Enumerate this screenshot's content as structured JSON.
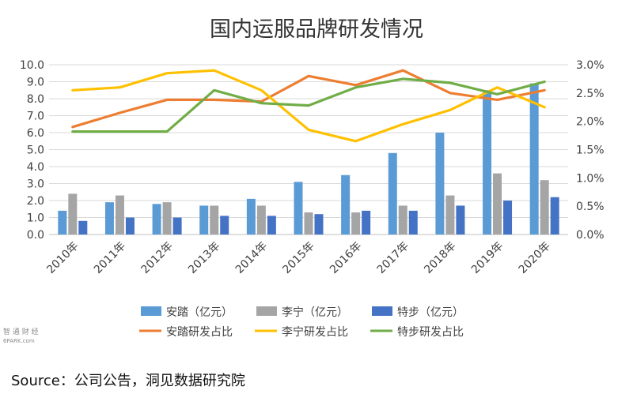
{
  "chart_data": {
    "type": "bar",
    "title": "国内运服品牌研发情况",
    "categories": [
      "2010年",
      "2011年",
      "2012年",
      "2013年",
      "2014年",
      "2015年",
      "2016年",
      "2017年",
      "2018年",
      "2019年",
      "2020年"
    ],
    "left_axis": {
      "range": [
        0,
        10
      ],
      "ticks": [
        "0.0",
        "1.0",
        "2.0",
        "3.0",
        "4.0",
        "5.0",
        "6.0",
        "7.0",
        "8.0",
        "9.0",
        "10.0"
      ]
    },
    "right_axis": {
      "range": [
        0,
        3
      ],
      "ticks": [
        "0.0%",
        "0.5%",
        "1.0%",
        "1.5%",
        "2.0%",
        "2.5%",
        "3.0%"
      ]
    },
    "grid": true,
    "legend_position": "bottom",
    "bar_series": [
      {
        "name": "安踏（亿元）",
        "color": "#5b9bd5",
        "values": [
          1.4,
          1.9,
          1.8,
          1.7,
          2.1,
          3.1,
          3.5,
          4.8,
          6.0,
          8.5,
          8.9
        ]
      },
      {
        "name": "李宁（亿元）",
        "color": "#a5a5a5",
        "values": [
          2.4,
          2.3,
          1.9,
          1.7,
          1.7,
          1.3,
          1.3,
          1.7,
          2.3,
          3.6,
          3.2
        ]
      },
      {
        "name": "特步（亿元）",
        "color": "#4472c4",
        "values": [
          0.8,
          1.0,
          1.0,
          1.1,
          1.1,
          1.2,
          1.4,
          1.4,
          1.7,
          2.0,
          2.2
        ]
      }
    ],
    "line_series": [
      {
        "name": "安踏研发占比",
        "color": "#ed7d31",
        "values": [
          1.9,
          2.15,
          2.38,
          2.38,
          2.35,
          2.8,
          2.64,
          2.9,
          2.5,
          2.38,
          2.55
        ]
      },
      {
        "name": "李宁研发占比",
        "color": "#ffc000",
        "values": [
          2.55,
          2.6,
          2.85,
          2.9,
          2.55,
          1.85,
          1.65,
          1.95,
          2.2,
          2.6,
          2.25
        ]
      },
      {
        "name": "特步研发占比",
        "color": "#70ad47",
        "values": [
          1.82,
          1.82,
          1.82,
          2.55,
          2.32,
          2.28,
          2.6,
          2.75,
          2.68,
          2.48,
          2.7
        ]
      }
    ]
  },
  "watermark": {
    "line1": "智 通 财 经",
    "line2": "6PARK.com"
  },
  "source_text": "Source：公司公告，洞见数据研究院"
}
